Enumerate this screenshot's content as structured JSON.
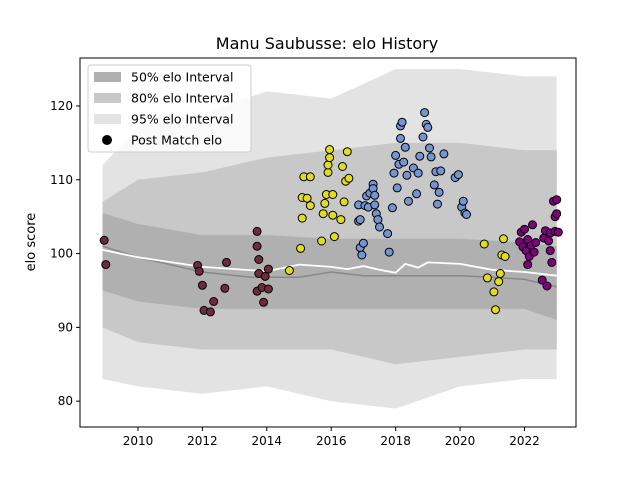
{
  "chart_data": {
    "type": "scatter",
    "title": "Manu Saubusse: elo History",
    "xlabel": "",
    "ylabel": "elo score",
    "xlim": [
      2008.2,
      2023.6
    ],
    "ylim": [
      76.5,
      126.5
    ],
    "x_ticks": [
      2010,
      2012,
      2014,
      2016,
      2018,
      2020,
      2022
    ],
    "y_ticks": [
      80,
      90,
      100,
      110,
      120
    ],
    "grid": false,
    "legend_position": "top-left",
    "legend": [
      {
        "label": "50% elo Interval",
        "kind": "band",
        "color": "#b0b0b0"
      },
      {
        "label": "80% elo Interval",
        "kind": "band",
        "color": "#c8c8c8"
      },
      {
        "label": "95% elo Interval",
        "kind": "band",
        "color": "#e3e3e3"
      },
      {
        "label": "Post Match elo",
        "kind": "marker",
        "color": "#000000"
      }
    ],
    "bands": {
      "x": [
        2008.9,
        2010,
        2012,
        2014,
        2016,
        2018,
        2020,
        2022,
        2023
      ],
      "p95_high": [
        112,
        117,
        119,
        122,
        121,
        125,
        125,
        124,
        124
      ],
      "p95_low": [
        83,
        82,
        81,
        82,
        80,
        79,
        82,
        83,
        83
      ],
      "p80_high": [
        107,
        110,
        111,
        113,
        114,
        115,
        115,
        114,
        114
      ],
      "p80_low": [
        90,
        88,
        87,
        87,
        87,
        85,
        86,
        87,
        87
      ],
      "p50_high": [
        105.5,
        104,
        102.5,
        102.5,
        102,
        102,
        102,
        101.5,
        101
      ],
      "p50_low": [
        95,
        93.5,
        92.5,
        92.5,
        92.5,
        92.5,
        92.5,
        92.5,
        91
      ]
    },
    "median_line": {
      "color": "#888888",
      "points": [
        [
          2008.9,
          101
        ],
        [
          2010,
          99.5
        ],
        [
          2012,
          97.5
        ],
        [
          2013.5,
          96.8
        ],
        [
          2015,
          96.8
        ],
        [
          2016,
          97.5
        ],
        [
          2017,
          97
        ],
        [
          2018,
          97
        ],
        [
          2020,
          97
        ],
        [
          2021,
          96.8
        ],
        [
          2022,
          96.5
        ],
        [
          2023,
          95.5
        ]
      ]
    },
    "mean_line": {
      "color": "#ffffff",
      "points": [
        [
          2008.9,
          100.5
        ],
        [
          2010,
          99.5
        ],
        [
          2012,
          98.2
        ],
        [
          2014,
          97.6
        ],
        [
          2015,
          98.5
        ],
        [
          2016,
          98.2
        ],
        [
          2016.5,
          97.9
        ],
        [
          2017,
          98.3
        ],
        [
          2017.5,
          97.8
        ],
        [
          2018,
          97.4
        ],
        [
          2018.3,
          98.6
        ],
        [
          2018.7,
          98.1
        ],
        [
          2019,
          98.8
        ],
        [
          2020,
          98.6
        ],
        [
          2021,
          97.8
        ],
        [
          2022,
          97.5
        ],
        [
          2023,
          97
        ]
      ]
    },
    "series": [
      {
        "color": "#6e2b3e",
        "points": [
          [
            2008.95,
            101.8
          ],
          [
            2009.0,
            98.5
          ],
          [
            2011.85,
            98.4
          ],
          [
            2011.9,
            97.6
          ],
          [
            2012.0,
            95.7
          ],
          [
            2012.05,
            92.3
          ],
          [
            2012.25,
            92.1
          ],
          [
            2012.35,
            93.5
          ],
          [
            2012.7,
            95.3
          ],
          [
            2012.75,
            98.8
          ],
          [
            2013.7,
            103.0
          ],
          [
            2013.7,
            101.0
          ],
          [
            2013.75,
            99.2
          ],
          [
            2013.75,
            97.3
          ],
          [
            2013.7,
            94.9
          ],
          [
            2013.85,
            95.4
          ],
          [
            2013.9,
            93.4
          ],
          [
            2013.95,
            96.9
          ],
          [
            2014.05,
            95.2
          ],
          [
            2014.05,
            97.9
          ]
        ]
      },
      {
        "color": "#e2dc1f",
        "points": [
          [
            2014.7,
            97.7
          ],
          [
            2015.05,
            100.7
          ],
          [
            2015.1,
            104.8
          ],
          [
            2015.1,
            107.6
          ],
          [
            2015.15,
            110.4
          ],
          [
            2015.25,
            107.5
          ],
          [
            2015.35,
            110.4
          ],
          [
            2015.35,
            106.5
          ],
          [
            2015.7,
            101.7
          ],
          [
            2015.75,
            105.4
          ],
          [
            2015.8,
            106.8
          ],
          [
            2015.85,
            108.0
          ],
          [
            2015.9,
            111.0
          ],
          [
            2015.9,
            112.0
          ],
          [
            2015.95,
            114.1
          ],
          [
            2015.95,
            113.0
          ],
          [
            2016.05,
            108.0
          ],
          [
            2016.05,
            105.2
          ],
          [
            2016.1,
            102.3
          ],
          [
            2016.3,
            104.6
          ],
          [
            2016.35,
            111.8
          ],
          [
            2016.4,
            107.0
          ],
          [
            2016.45,
            109.8
          ],
          [
            2016.5,
            113.8
          ],
          [
            2016.55,
            110.2
          ]
        ]
      },
      {
        "color": "#7395d2",
        "points": [
          [
            2016.85,
            106.6
          ],
          [
            2016.85,
            104.4
          ],
          [
            2016.9,
            104.6
          ],
          [
            2016.9,
            100.8
          ],
          [
            2016.95,
            99.8
          ],
          [
            2017.0,
            101.4
          ],
          [
            2017.05,
            106.5
          ],
          [
            2017.1,
            107.8
          ],
          [
            2017.15,
            106.3
          ],
          [
            2017.2,
            108.2
          ],
          [
            2017.3,
            109.4
          ],
          [
            2017.3,
            108.8
          ],
          [
            2017.35,
            107.9
          ],
          [
            2017.35,
            106.6
          ],
          [
            2017.4,
            105.4
          ],
          [
            2017.45,
            104.6
          ],
          [
            2017.5,
            103.6
          ],
          [
            2017.75,
            102.7
          ],
          [
            2017.8,
            100.2
          ],
          [
            2017.9,
            106.2
          ],
          [
            2017.95,
            110.9
          ],
          [
            2018.0,
            113.3
          ],
          [
            2018.05,
            108.9
          ],
          [
            2018.1,
            112.1
          ],
          [
            2018.15,
            115.6
          ],
          [
            2018.15,
            117.3
          ],
          [
            2018.2,
            117.8
          ],
          [
            2018.25,
            112.4
          ],
          [
            2018.3,
            114.4
          ],
          [
            2018.35,
            110.6
          ],
          [
            2018.4,
            107.1
          ],
          [
            2018.55,
            111.6
          ],
          [
            2018.65,
            108.1
          ],
          [
            2018.7,
            110.9
          ],
          [
            2018.75,
            113.2
          ],
          [
            2018.85,
            115.8
          ],
          [
            2018.9,
            119.1
          ],
          [
            2018.95,
            117.5
          ],
          [
            2019.0,
            117.1
          ],
          [
            2019.05,
            114.3
          ],
          [
            2019.1,
            113.1
          ],
          [
            2019.2,
            109.3
          ],
          [
            2019.25,
            111.1
          ],
          [
            2019.3,
            106.7
          ],
          [
            2019.35,
            108.3
          ],
          [
            2019.4,
            111.2
          ],
          [
            2019.5,
            113.5
          ],
          [
            2019.85,
            110.3
          ],
          [
            2019.95,
            110.7
          ],
          [
            2020.05,
            106.3
          ],
          [
            2020.1,
            107.1
          ],
          [
            2020.15,
            105.5
          ],
          [
            2020.2,
            105.3
          ]
        ]
      },
      {
        "color": "#e2dc1f",
        "points": [
          [
            2020.75,
            101.3
          ],
          [
            2020.85,
            96.7
          ],
          [
            2021.05,
            94.8
          ],
          [
            2021.1,
            92.4
          ],
          [
            2021.2,
            96.2
          ],
          [
            2021.25,
            97.3
          ],
          [
            2021.3,
            99.8
          ],
          [
            2021.35,
            102.0
          ],
          [
            2021.4,
            99.6
          ]
        ]
      },
      {
        "color": "#800080",
        "points": [
          [
            2021.85,
            101.6
          ],
          [
            2021.9,
            102.9
          ],
          [
            2021.95,
            100.9
          ],
          [
            2022.0,
            103.3
          ],
          [
            2022.05,
            100.4
          ],
          [
            2022.1,
            98.5
          ],
          [
            2022.1,
            101.9
          ],
          [
            2022.15,
            99.6
          ],
          [
            2022.2,
            101.1
          ],
          [
            2022.25,
            103.9
          ],
          [
            2022.3,
            100.2
          ],
          [
            2022.35,
            101.5
          ],
          [
            2022.55,
            96.4
          ],
          [
            2022.6,
            102.1
          ],
          [
            2022.65,
            103.1
          ],
          [
            2022.7,
            95.6
          ],
          [
            2022.75,
            101.7
          ],
          [
            2022.8,
            100.4
          ],
          [
            2022.8,
            102.8
          ],
          [
            2022.85,
            98.8
          ],
          [
            2022.9,
            107.1
          ],
          [
            2022.95,
            105.0
          ],
          [
            2022.95,
            103.0
          ],
          [
            2023.0,
            107.3
          ],
          [
            2023.0,
            105.4
          ],
          [
            2023.05,
            102.9
          ]
        ]
      }
    ]
  }
}
